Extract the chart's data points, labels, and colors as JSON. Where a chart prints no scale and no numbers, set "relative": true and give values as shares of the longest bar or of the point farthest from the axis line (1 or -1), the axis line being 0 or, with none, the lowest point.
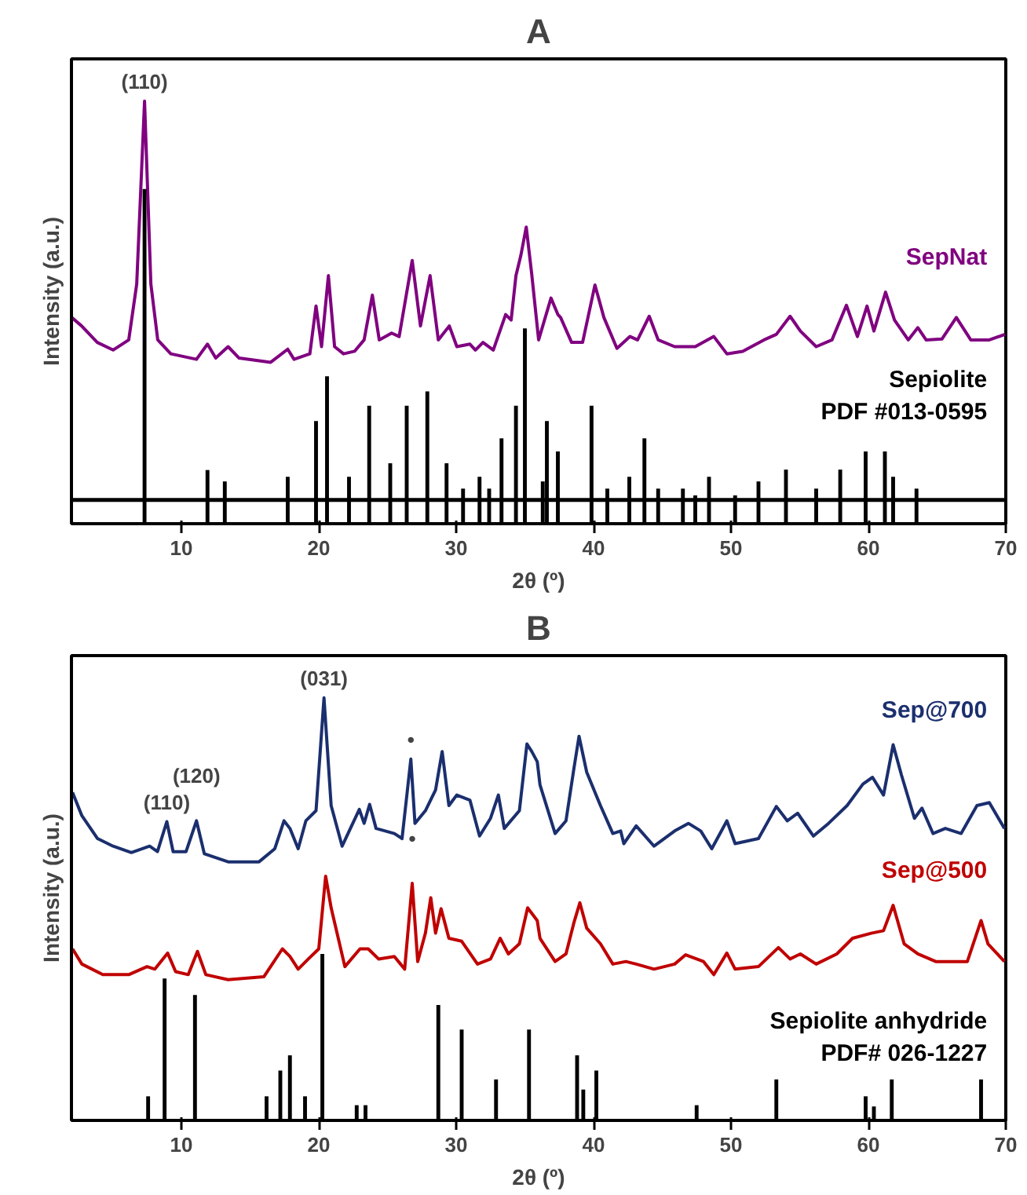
{
  "chart_data": [
    {
      "type": "line",
      "title": "A",
      "xlabel": "2θ (º)",
      "ylabel": "Intensity (a.u.)",
      "relative": true,
      "xlim": [
        2,
        70
      ],
      "xticks": [
        10,
        20,
        30,
        40,
        50,
        60,
        70
      ],
      "series": [
        {
          "name": "SepNat",
          "color": "#800080",
          "x": [
            2.02,
            2.74,
            3.88,
            5.03,
            6.17,
            6.75,
            7.32,
            7.78,
            8.28,
            9.23,
            11.1,
            11.9,
            12.5,
            13.4,
            14.2,
            16.5,
            17.74,
            18.2,
            19.35,
            19.8,
            20.2,
            20.7,
            21.15,
            21.8,
            22.6,
            23.3,
            23.9,
            24.4,
            25.3,
            25.85,
            26.8,
            27.4,
            28.1,
            28.7,
            29.5,
            30.05,
            31.0,
            31.4,
            31.95,
            32.7,
            33.6,
            34.0,
            34.35,
            34.7,
            35.1,
            35.5,
            36.0,
            36.9,
            37.4,
            37.6,
            38.4,
            39.2,
            40.1,
            40.75,
            41.7,
            42.65,
            43.2,
            44.05,
            44.7,
            45.9,
            47.4,
            48.75,
            49.7,
            50.85,
            52.4,
            53.3,
            54.3,
            55.05,
            56.2,
            57.35,
            58.4,
            59.2,
            59.9,
            60.4,
            61.25,
            61.9,
            62.9,
            63.6,
            64.2,
            65.35,
            66.4,
            67.45,
            68.8,
            69.95
          ],
          "values": [
            0.488,
            0.468,
            0.429,
            0.411,
            0.435,
            0.567,
            1.0,
            0.567,
            0.435,
            0.402,
            0.389,
            0.425,
            0.392,
            0.419,
            0.392,
            0.382,
            0.413,
            0.389,
            0.402,
            0.515,
            0.419,
            0.587,
            0.419,
            0.402,
            0.408,
            0.435,
            0.541,
            0.435,
            0.451,
            0.443,
            0.623,
            0.468,
            0.587,
            0.435,
            0.468,
            0.419,
            0.425,
            0.411,
            0.429,
            0.411,
            0.495,
            0.482,
            0.587,
            0.634,
            0.702,
            0.59,
            0.435,
            0.534,
            0.495,
            0.488,
            0.429,
            0.429,
            0.565,
            0.488,
            0.415,
            0.443,
            0.435,
            0.491,
            0.435,
            0.419,
            0.419,
            0.443,
            0.402,
            0.408,
            0.435,
            0.448,
            0.491,
            0.456,
            0.419,
            0.435,
            0.517,
            0.443,
            0.515,
            0.456,
            0.548,
            0.482,
            0.435,
            0.464,
            0.435,
            0.437,
            0.488,
            0.435,
            0.435,
            0.448
          ]
        },
        {
          "name": "Sepiolite\nPDF #013-0595",
          "type": "bar",
          "color": "#000000",
          "x": [
            7.32,
            11.9,
            13.16,
            17.74,
            19.8,
            20.6,
            22.2,
            23.67,
            25.2,
            26.4,
            27.9,
            29.3,
            30.5,
            31.7,
            32.4,
            33.3,
            34.35,
            35.0,
            36.3,
            36.6,
            37.4,
            39.85,
            41.0,
            42.6,
            43.7,
            44.7,
            46.5,
            47.4,
            48.4,
            50.3,
            52.0,
            54.0,
            56.2,
            57.95,
            59.8,
            61.2,
            61.8,
            63.5
          ],
          "values": [
            0.792,
            0.127,
            0.1,
            0.111,
            0.243,
            0.349,
            0.111,
            0.279,
            0.143,
            0.279,
            0.313,
            0.143,
            0.083,
            0.111,
            0.083,
            0.202,
            0.279,
            0.462,
            0.1,
            0.243,
            0.171,
            0.279,
            0.083,
            0.111,
            0.202,
            0.083,
            0.083,
            0.067,
            0.111,
            0.067,
            0.1,
            0.128,
            0.083,
            0.128,
            0.171,
            0.171,
            0.111,
            0.083
          ]
        }
      ],
      "ref_lines": [
        {
          "axis": "y",
          "value": 0.056,
          "color": "#000000"
        }
      ],
      "annotations": [
        {
          "text": "(110)",
          "x": 7.32,
          "y": 1.0
        }
      ]
    },
    {
      "type": "line",
      "title": "B",
      "xlabel": "2θ (º)",
      "ylabel": "Intensity (a.u.)",
      "relative": true,
      "xlim": [
        2,
        70
      ],
      "xticks": [
        10,
        20,
        30,
        40,
        50,
        60,
        70
      ],
      "series": [
        {
          "name": "Sep@700",
          "color": "#1b2f6e",
          "x": [
            2.08,
            2.76,
            3.9,
            5.03,
            6.36,
            7.69,
            8.26,
            8.94,
            9.4,
            10.34,
            11.1,
            11.67,
            13.4,
            15.65,
            16.8,
            17.47,
            17.9,
            18.5,
            19.06,
            19.8,
            20.38,
            20.9,
            21.7,
            22.95,
            23.3,
            23.7,
            24.17,
            25.5,
            26.06,
            26.7,
            27.0,
            27.76,
            28.5,
            28.98,
            29.47,
            30.04,
            31.0,
            31.7,
            32.5,
            33.07,
            33.5,
            34.6,
            35.15,
            35.5,
            35.9,
            36.1,
            37.2,
            37.99,
            38.56,
            38.94,
            39.5,
            40.5,
            41.4,
            41.97,
            42.2,
            43.1,
            44.4,
            45.9,
            46.9,
            47.8,
            48.6,
            49.7,
            50.3,
            52.0,
            53.3,
            54.1,
            54.85,
            56.0,
            57.1,
            58.45,
            59.6,
            60.3,
            61.1,
            61.8,
            62.4,
            63.35,
            63.9,
            64.7,
            65.6,
            66.75,
            67.9,
            68.8,
            69.9
          ],
          "values": [
            0.776,
            0.721,
            0.667,
            0.649,
            0.634,
            0.649,
            0.636,
            0.707,
            0.636,
            0.636,
            0.709,
            0.631,
            0.612,
            0.612,
            0.643,
            0.709,
            0.691,
            0.643,
            0.709,
            0.733,
            1.0,
            0.745,
            0.649,
            0.736,
            0.703,
            0.748,
            0.691,
            0.679,
            0.667,
            0.855,
            0.703,
            0.733,
            0.782,
            0.873,
            0.745,
            0.77,
            0.758,
            0.673,
            0.715,
            0.77,
            0.691,
            0.733,
            0.891,
            0.873,
            0.849,
            0.794,
            0.679,
            0.709,
            0.831,
            0.909,
            0.824,
            0.745,
            0.679,
            0.685,
            0.655,
            0.697,
            0.649,
            0.685,
            0.703,
            0.685,
            0.643,
            0.709,
            0.655,
            0.667,
            0.743,
            0.709,
            0.727,
            0.673,
            0.703,
            0.745,
            0.796,
            0.812,
            0.77,
            0.889,
            0.818,
            0.715,
            0.739,
            0.679,
            0.691,
            0.679,
            0.745,
            0.752,
            0.691
          ]
        },
        {
          "name": "Sep@500",
          "color": "#c00000",
          "x": [
            2.08,
            2.76,
            4.28,
            6.17,
            7.5,
            8.07,
            9.0,
            9.58,
            10.5,
            11.17,
            11.78,
            13.4,
            16.0,
            17.35,
            17.9,
            18.5,
            19.24,
            20.0,
            20.5,
            20.9,
            21.9,
            23.0,
            23.6,
            24.35,
            25.5,
            26.25,
            26.8,
            27.2,
            27.76,
            28.15,
            28.5,
            28.9,
            29.47,
            30.4,
            31.55,
            32.5,
            33.2,
            33.8,
            34.6,
            35.2,
            35.9,
            36.1,
            37.2,
            37.99,
            38.56,
            39.0,
            39.5,
            40.5,
            41.4,
            42.35,
            43.1,
            44.4,
            45.9,
            46.7,
            48.0,
            48.75,
            49.7,
            50.3,
            52.0,
            53.45,
            54.3,
            55.05,
            56.2,
            57.7,
            58.85,
            60.2,
            61.1,
            61.8,
            62.6,
            63.6,
            64.9,
            67.2,
            68.2,
            68.7,
            69.9
          ],
          "values": [
            0.406,
            0.37,
            0.345,
            0.345,
            0.364,
            0.358,
            0.396,
            0.352,
            0.345,
            0.4,
            0.345,
            0.333,
            0.34,
            0.406,
            0.388,
            0.358,
            0.382,
            0.406,
            0.578,
            0.503,
            0.364,
            0.406,
            0.406,
            0.382,
            0.388,
            0.358,
            0.561,
            0.376,
            0.443,
            0.527,
            0.443,
            0.501,
            0.431,
            0.424,
            0.37,
            0.382,
            0.431,
            0.394,
            0.418,
            0.503,
            0.473,
            0.431,
            0.376,
            0.394,
            0.467,
            0.515,
            0.455,
            0.418,
            0.37,
            0.376,
            0.37,
            0.358,
            0.37,
            0.392,
            0.376,
            0.345,
            0.396,
            0.358,
            0.364,
            0.409,
            0.382,
            0.394,
            0.37,
            0.394,
            0.431,
            0.443,
            0.449,
            0.509,
            0.418,
            0.394,
            0.376,
            0.376,
            0.473,
            0.418,
            0.376
          ]
        },
        {
          "name": "Sepiolite anhydride\nPDF# 026-1227",
          "type": "bar",
          "color": "#000000",
          "x": [
            7.58,
            8.78,
            10.99,
            16.2,
            17.2,
            17.9,
            19.0,
            20.26,
            22.76,
            23.4,
            28.7,
            30.4,
            32.9,
            35.3,
            38.8,
            39.25,
            40.2,
            47.5,
            53.3,
            59.8,
            60.4,
            61.7,
            68.2
          ],
          "values": [
            0.057,
            0.336,
            0.297,
            0.057,
            0.118,
            0.154,
            0.057,
            0.394,
            0.036,
            0.036,
            0.273,
            0.215,
            0.097,
            0.215,
            0.154,
            0.073,
            0.118,
            0.036,
            0.097,
            0.057,
            0.033,
            0.097,
            0.097
          ]
        }
      ],
      "annotations": [
        {
          "text": "(110)",
          "x": 8.94,
          "y": 0.707
        },
        {
          "text": "(120)",
          "x": 11.1,
          "y": 0.709
        },
        {
          "text": "(031)",
          "x": 20.38,
          "y": 1.0
        },
        {
          "text": "•",
          "x": 26.7,
          "y": 0.855
        },
        {
          "text": "•",
          "x": 26.8,
          "y": 0.561
        }
      ]
    }
  ]
}
